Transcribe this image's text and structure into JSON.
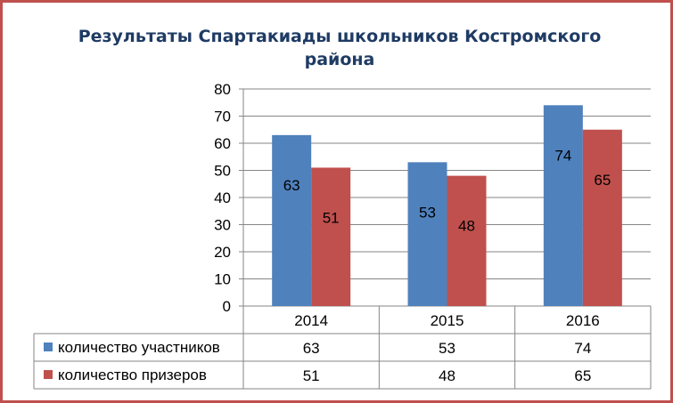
{
  "chart_data": {
    "type": "bar",
    "title_line1": "Результаты Спартакиады  школьников Костромского",
    "title_line2": "района",
    "categories": [
      "2014",
      "2015",
      "2016"
    ],
    "series": [
      {
        "name": "количество участников",
        "values": [
          63,
          53,
          74
        ],
        "color": "#4f81bd"
      },
      {
        "name": "количество призеров",
        "values": [
          51,
          48,
          65
        ],
        "color": "#c0504d"
      }
    ],
    "ylim": [
      0,
      80
    ],
    "yticks": [
      0,
      10,
      20,
      30,
      40,
      50,
      60,
      70,
      80
    ],
    "grid": true,
    "data_labels": true,
    "legend": "data-table"
  },
  "colors": {
    "border": "#c0504d",
    "title": "#1f3b64"
  }
}
